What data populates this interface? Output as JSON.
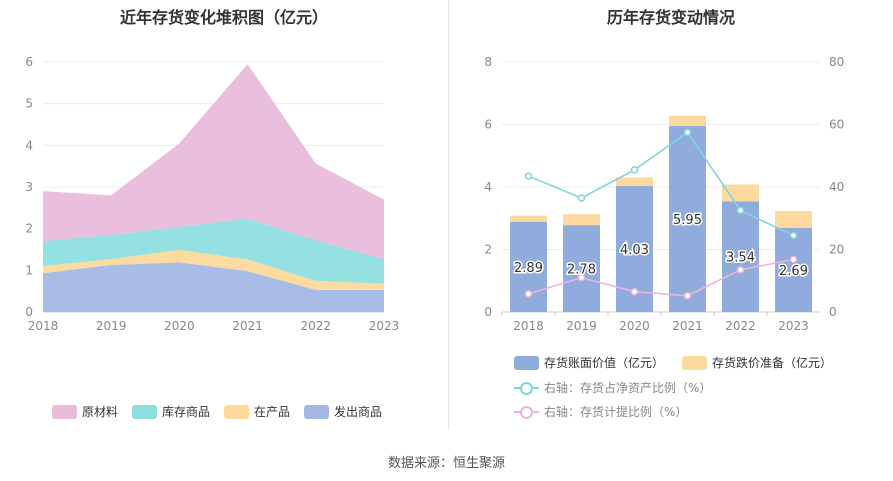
{
  "source_text": "数据来源：恒生聚源",
  "left": {
    "title": "近年存货变化堆积图（亿元）",
    "legend": [
      "原材料",
      "库存商品",
      "在产品",
      "发出商品"
    ]
  },
  "right": {
    "title": "历年存货变动情况",
    "legend": [
      "存货账面价值（亿元）",
      "存货跌价准备（亿元）",
      "右轴：存货占净资产比例（%）",
      "右轴：存货计提比例（%）"
    ]
  },
  "colors": {
    "raw_materials": "#e9bcdc",
    "inventory_goods": "#8fdede",
    "wip": "#fcd99b",
    "shipped_goods": "#a4b8e4",
    "book_value": "#90acdc",
    "impairment": "#fbd99f",
    "ratio_net_assets": "#7fd6da",
    "provision_ratio": "#ecb5de"
  },
  "chart_data": [
    {
      "type": "area",
      "stacked": true,
      "title": "近年存货变化堆积图（亿元）",
      "x": [
        "2018",
        "2019",
        "2020",
        "2021",
        "2022",
        "2023"
      ],
      "ylim": [
        0,
        6
      ],
      "yticks": [
        0,
        1,
        2,
        3,
        4,
        5,
        6
      ],
      "series": [
        {
          "name": "发出商品",
          "values": [
            0.93,
            1.13,
            1.19,
            0.98,
            0.53,
            0.53
          ]
        },
        {
          "name": "在产品",
          "values": [
            0.17,
            0.14,
            0.3,
            0.28,
            0.22,
            0.15
          ]
        },
        {
          "name": "库存商品",
          "values": [
            0.6,
            0.58,
            0.55,
            0.98,
            0.97,
            0.59
          ]
        },
        {
          "name": "原材料",
          "values": [
            1.2,
            0.95,
            2.01,
            3.71,
            1.84,
            1.43
          ]
        }
      ],
      "legend_position": "bottom",
      "grid": true
    },
    {
      "type": "bar",
      "stacked": true,
      "title": "历年存货变动情况",
      "categories": [
        "2018",
        "2019",
        "2020",
        "2021",
        "2022",
        "2023"
      ],
      "ylim": [
        0,
        8
      ],
      "yticks": [
        0,
        2,
        4,
        6,
        8
      ],
      "y2lim": [
        0,
        80
      ],
      "y2ticks": [
        0,
        20,
        40,
        60,
        80
      ],
      "series": [
        {
          "name": "存货账面价值（亿元）",
          "values": [
            2.89,
            2.78,
            4.03,
            5.95,
            3.54,
            2.69
          ],
          "data_labels": [
            "2.89",
            "2.78",
            "4.03",
            "5.95",
            "3.54",
            "2.69"
          ]
        },
        {
          "name": "存货跌价准备（亿元）",
          "values": [
            0.19,
            0.35,
            0.28,
            0.33,
            0.54,
            0.54
          ]
        },
        {
          "name": "右轴：存货占净资产比例（%）",
          "type": "line",
          "axis": "right",
          "values": [
            43.5,
            36.5,
            45.5,
            57.5,
            32.5,
            24.5
          ]
        },
        {
          "name": "右轴：存货计提比例（%）",
          "type": "line",
          "axis": "right",
          "values": [
            5.8,
            11.0,
            6.5,
            5.2,
            13.5,
            16.8
          ]
        }
      ],
      "legend_position": "bottom",
      "grid": true
    }
  ]
}
